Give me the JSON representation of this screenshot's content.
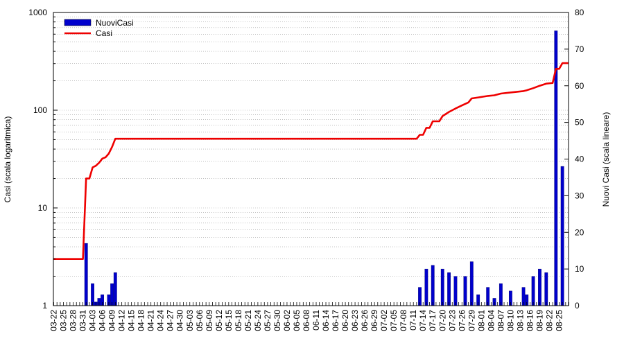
{
  "chart_data": {
    "type": "bar+line",
    "y_left": {
      "label": "Casi (scala logaritmica)",
      "scale": "log",
      "range": [
        1,
        1000
      ],
      "ticks": [
        "1",
        "10",
        "100",
        "1000"
      ]
    },
    "y_right": {
      "label": "Nuovi Casi (scala lineare)",
      "scale": "linear",
      "range": [
        0,
        80
      ],
      "ticks": [
        "0",
        "10",
        "20",
        "30",
        "40",
        "50",
        "60",
        "70",
        "80"
      ]
    },
    "x": {
      "start_date": "2020-03-22",
      "end_date": "2020-08-28",
      "tick_labels": [
        "03-22",
        "03-25",
        "03-28",
        "03-31",
        "04-03",
        "04-06",
        "04-09",
        "04-12",
        "04-15",
        "04-18",
        "04-21",
        "04-24",
        "04-27",
        "04-30",
        "05-03",
        "05-06",
        "05-09",
        "05-12",
        "05-15",
        "05-18",
        "05-21",
        "05-24",
        "05-27",
        "05-30",
        "06-02",
        "06-05",
        "06-08",
        "06-11",
        "06-14",
        "06-17",
        "06-20",
        "06-23",
        "06-26",
        "06-29",
        "07-02",
        "07-05",
        "07-08",
        "07-11",
        "07-14",
        "07-17",
        "07-20",
        "07-23",
        "07-26",
        "07-29",
        "08-01",
        "08-04",
        "08-07",
        "08-10",
        "08-13",
        "08-16",
        "08-19",
        "08-22",
        "08-25"
      ]
    },
    "grid": true,
    "legend_position": "top-left",
    "series": [
      {
        "name": "NuoviCasi",
        "kind": "bar",
        "axis": "right",
        "color": "#0000cc",
        "points": [
          [
            "04-01",
            17
          ],
          [
            "04-02",
            0
          ],
          [
            "04-03",
            6
          ],
          [
            "04-04",
            1
          ],
          [
            "04-05",
            2
          ],
          [
            "04-06",
            3
          ],
          [
            "04-08",
            3
          ],
          [
            "04-09",
            6
          ],
          [
            "04-10",
            9
          ],
          [
            "07-13",
            5
          ],
          [
            "07-15",
            10
          ],
          [
            "07-17",
            11
          ],
          [
            "07-20",
            10
          ],
          [
            "07-22",
            9
          ],
          [
            "07-24",
            8
          ],
          [
            "07-27",
            8
          ],
          [
            "07-29",
            12
          ],
          [
            "07-31",
            3
          ],
          [
            "08-03",
            5
          ],
          [
            "08-05",
            2
          ],
          [
            "08-07",
            6
          ],
          [
            "08-10",
            4
          ],
          [
            "08-14",
            5
          ],
          [
            "08-15",
            3
          ],
          [
            "08-17",
            8
          ],
          [
            "08-19",
            10
          ],
          [
            "08-21",
            9
          ],
          [
            "08-24",
            75
          ],
          [
            "08-26",
            38
          ]
        ]
      },
      {
        "name": "Casi",
        "kind": "line",
        "axis": "left",
        "color": "#ee0000",
        "points": [
          [
            "03-22",
            3
          ],
          [
            "03-31",
            3
          ],
          [
            "04-01",
            20
          ],
          [
            "04-02",
            20
          ],
          [
            "04-03",
            26
          ],
          [
            "04-04",
            27
          ],
          [
            "04-05",
            29
          ],
          [
            "04-06",
            32
          ],
          [
            "04-07",
            33
          ],
          [
            "04-08",
            36
          ],
          [
            "04-09",
            42
          ],
          [
            "04-10",
            51
          ],
          [
            "07-12",
            51
          ],
          [
            "07-13",
            56
          ],
          [
            "07-14",
            56
          ],
          [
            "07-15",
            66
          ],
          [
            "07-16",
            66
          ],
          [
            "07-17",
            77
          ],
          [
            "07-19",
            77
          ],
          [
            "07-20",
            87
          ],
          [
            "07-22",
            96
          ],
          [
            "07-24",
            104
          ],
          [
            "07-26",
            112
          ],
          [
            "07-28",
            120
          ],
          [
            "07-29",
            132
          ],
          [
            "07-31",
            135
          ],
          [
            "08-03",
            140
          ],
          [
            "08-05",
            142
          ],
          [
            "08-07",
            148
          ],
          [
            "08-10",
            152
          ],
          [
            "08-14",
            157
          ],
          [
            "08-15",
            160
          ],
          [
            "08-17",
            168
          ],
          [
            "08-19",
            178
          ],
          [
            "08-21",
            187
          ],
          [
            "08-23",
            190
          ],
          [
            "08-24",
            265
          ],
          [
            "08-25",
            265
          ],
          [
            "08-26",
            303
          ],
          [
            "08-28",
            303
          ]
        ]
      }
    ]
  }
}
